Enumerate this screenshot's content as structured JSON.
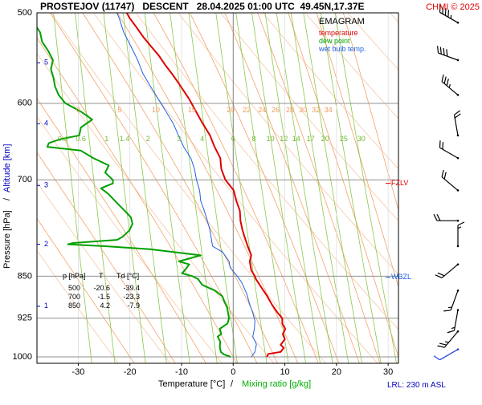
{
  "header": {
    "title": "PROSTEJOV (11747)   DESCENT   28.04.2025 01:00 UTC  49.45N,17.37E",
    "copyright": "CHMI © 2025"
  },
  "legend": {
    "title": "EMAGRAM",
    "items": [
      {
        "label": "temperature",
        "color": "#e00000"
      },
      {
        "label": "dew point",
        "color": "#00a000"
      },
      {
        "label": "wet bulb temp.",
        "color": "#2060e0"
      }
    ]
  },
  "axes": {
    "ylabel_pressure": "Pressure [hPa]",
    "ylabel_sep": "/",
    "ylabel_altitude": "Altitude [km]",
    "xlabel_temp": "Temperature [°C]",
    "xlabel_sep": "/",
    "xlabel_mixing": "Mixing ratio [g/kg]",
    "lrl": "LRL: 230 m ASL"
  },
  "markers": {
    "fzlv": {
      "label": "FZLV",
      "pressure": 705,
      "color": "#e00000"
    },
    "wbzl": {
      "label": "WBZL",
      "pressure": 852,
      "color": "#2060e0"
    }
  },
  "table": {
    "headers": [
      "p [hPa]",
      "T",
      "Td [°C]"
    ],
    "rows": [
      [
        "500",
        "-20.6",
        "-39.4"
      ],
      [
        "700",
        "-1.5",
        "-23.3"
      ],
      [
        "850",
        "4.2",
        "-7.9"
      ]
    ]
  },
  "chart_data": {
    "type": "line",
    "title": "EMAGRAM",
    "xlabel": "Temperature [°C]",
    "ylabel": "Pressure [hPa]",
    "xlim": [
      -38,
      32
    ],
    "ylim": [
      1013,
      500
    ],
    "yscale": "log",
    "x_ticks": [
      -30,
      -20,
      -10,
      0,
      10,
      20,
      30
    ],
    "pressure_ticks": [
      500,
      600,
      700,
      850,
      925,
      1000
    ],
    "altitude_ticks_km": [
      {
        "label": "1",
        "pressure": 903
      },
      {
        "label": "2",
        "pressure": 797
      },
      {
        "label": "3",
        "pressure": 708
      },
      {
        "label": "4",
        "pressure": 625
      },
      {
        "label": "5",
        "pressure": 553
      }
    ],
    "isotherm_labels": [
      {
        "label": "0",
        "t": -30,
        "p": 610
      },
      {
        "label": "5",
        "t": -22,
        "p": 610
      },
      {
        "label": "10",
        "t": -15,
        "p": 610
      },
      {
        "label": "15",
        "t": -8,
        "p": 610
      },
      {
        "label": "20",
        "t": -0.5,
        "p": 610
      },
      {
        "label": "22",
        "t": 2.6,
        "p": 610
      },
      {
        "label": "24",
        "t": 5.6,
        "p": 610
      },
      {
        "label": "26",
        "t": 8.2,
        "p": 610
      },
      {
        "label": "28",
        "t": 11.0,
        "p": 610
      },
      {
        "label": "30",
        "t": 13.5,
        "p": 610
      },
      {
        "label": "32",
        "t": 16.0,
        "p": 610
      },
      {
        "label": "34",
        "t": 18.4,
        "p": 610
      }
    ],
    "mixing_ratio_labels": [
      {
        "label": "0.4",
        "t": -33,
        "p": 625
      },
      {
        "label": "0.6",
        "t": -29.5,
        "p": 625
      },
      {
        "label": "1",
        "t": -24.5,
        "p": 625
      },
      {
        "label": "1.4",
        "t": -21,
        "p": 625
      },
      {
        "label": "2",
        "t": -16.5,
        "p": 625
      },
      {
        "label": "3",
        "t": -10.5,
        "p": 625
      },
      {
        "label": "4",
        "t": -6,
        "p": 625
      },
      {
        "label": "6",
        "t": 0,
        "p": 625
      },
      {
        "label": "8",
        "t": 4,
        "p": 625
      },
      {
        "label": "10",
        "t": 7.2,
        "p": 625
      },
      {
        "label": "12",
        "t": 9.8,
        "p": 625
      },
      {
        "label": "14",
        "t": 12.2,
        "p": 625
      },
      {
        "label": "17",
        "t": 15.0,
        "p": 625
      },
      {
        "label": "20",
        "t": 17.8,
        "p": 625
      },
      {
        "label": "25",
        "t": 21.4,
        "p": 625
      },
      {
        "label": "30",
        "t": 24.8,
        "p": 625
      }
    ],
    "series": [
      {
        "name": "temperature",
        "color": "#e00000",
        "points": [
          [
            1000,
            6.5
          ],
          [
            994,
            6.8
          ],
          [
            990,
            9.2
          ],
          [
            982,
            9.8
          ],
          [
            976,
            9.2
          ],
          [
            965,
            10
          ],
          [
            955,
            9.6
          ],
          [
            945,
            10.1
          ],
          [
            935,
            9.5
          ],
          [
            925,
            9.5
          ],
          [
            915,
            8.6
          ],
          [
            900,
            7.5
          ],
          [
            885,
            6.6
          ],
          [
            870,
            5.5
          ],
          [
            855,
            4.4
          ],
          [
            850,
            4.2
          ],
          [
            840,
            3.5
          ],
          [
            825,
            3.2
          ],
          [
            815,
            3.5
          ],
          [
            800,
            2.8
          ],
          [
            785,
            2.2
          ],
          [
            775,
            1.8
          ],
          [
            760,
            1.4
          ],
          [
            745,
            1.3
          ],
          [
            730,
            0.6
          ],
          [
            715,
            0.1
          ],
          [
            700,
            -1.5
          ],
          [
            685,
            -2.3
          ],
          [
            670,
            -2.5
          ],
          [
            655,
            -3.6
          ],
          [
            640,
            -4.5
          ],
          [
            625,
            -5.9
          ],
          [
            610,
            -7.2
          ],
          [
            595,
            -8.5
          ],
          [
            585,
            -9.6
          ],
          [
            575,
            -10.7
          ],
          [
            565,
            -11.9
          ],
          [
            555,
            -13.2
          ],
          [
            545,
            -14.4
          ],
          [
            535,
            -15.9
          ],
          [
            525,
            -17.4
          ],
          [
            515,
            -18.7
          ],
          [
            505,
            -20.1
          ],
          [
            500,
            -20.6
          ]
        ]
      },
      {
        "name": "dew point",
        "color": "#00a000",
        "points": [
          [
            1000,
            -0.5
          ],
          [
            995,
            -1.8
          ],
          [
            990,
            -2.4
          ],
          [
            980,
            -2.6
          ],
          [
            970,
            -2.5
          ],
          [
            960,
            -3
          ],
          [
            955,
            -2.3
          ],
          [
            945,
            -2.6
          ],
          [
            935,
            -1.1
          ],
          [
            925,
            -0.8
          ],
          [
            915,
            -1
          ],
          [
            905,
            -1.2
          ],
          [
            895,
            -1.7
          ],
          [
            885,
            -2.1
          ],
          [
            875,
            -3.5
          ],
          [
            865,
            -6
          ],
          [
            855,
            -6.8
          ],
          [
            850,
            -7.9
          ],
          [
            845,
            -9.9
          ],
          [
            840,
            -9.4
          ],
          [
            830,
            -8.5
          ],
          [
            825,
            -10.5
          ],
          [
            815,
            -6.3
          ],
          [
            805,
            -16.1
          ],
          [
            800,
            -25.1
          ],
          [
            797,
            -32
          ],
          [
            795,
            -31
          ],
          [
            790,
            -22.5
          ],
          [
            785,
            -21.4
          ],
          [
            775,
            -20.1
          ],
          [
            765,
            -19.5
          ],
          [
            755,
            -19.8
          ],
          [
            745,
            -21
          ],
          [
            735,
            -22.3
          ],
          [
            720,
            -24.2
          ],
          [
            712,
            -25.6
          ],
          [
            705,
            -23.3
          ],
          [
            700,
            -23.3
          ],
          [
            690,
            -24.8
          ],
          [
            680,
            -24.1
          ],
          [
            670,
            -27.1
          ],
          [
            660,
            -29.5
          ],
          [
            655,
            -36
          ],
          [
            650,
            -35.7
          ],
          [
            645,
            -33.5
          ],
          [
            640,
            -29.8
          ],
          [
            630,
            -29.5
          ],
          [
            620,
            -27.3
          ],
          [
            610,
            -29.5
          ],
          [
            600,
            -32.5
          ],
          [
            590,
            -33.8
          ],
          [
            580,
            -34.5
          ],
          [
            570,
            -34.8
          ],
          [
            560,
            -35.3
          ],
          [
            550,
            -34.9
          ],
          [
            540,
            -35.8
          ],
          [
            530,
            -37
          ],
          [
            520,
            -37.4
          ],
          [
            510,
            -38.6
          ],
          [
            505,
            -39.4
          ],
          [
            500,
            -39.4
          ]
        ]
      },
      {
        "name": "wet bulb temp.",
        "color": "#2060e0",
        "points": [
          [
            1000,
            3.5
          ],
          [
            990,
            4.2
          ],
          [
            975,
            4.5
          ],
          [
            960,
            3.8
          ],
          [
            945,
            4.1
          ],
          [
            930,
            4.2
          ],
          [
            915,
            3.8
          ],
          [
            900,
            3.2
          ],
          [
            880,
            2.6
          ],
          [
            860,
            1.6
          ],
          [
            850,
            0.8
          ],
          [
            835,
            -0.6
          ],
          [
            825,
            -0.8
          ],
          [
            810,
            -2
          ],
          [
            800,
            -4
          ],
          [
            790,
            -4.2
          ],
          [
            775,
            -4.5
          ],
          [
            760,
            -5
          ],
          [
            745,
            -5.6
          ],
          [
            730,
            -6.3
          ],
          [
            715,
            -6.5
          ],
          [
            700,
            -7.1
          ],
          [
            685,
            -7.5
          ],
          [
            670,
            -8.2
          ],
          [
            655,
            -9.6
          ],
          [
            640,
            -10.6
          ],
          [
            625,
            -11.6
          ],
          [
            610,
            -13
          ],
          [
            595,
            -14.5
          ],
          [
            580,
            -16
          ],
          [
            565,
            -17.5
          ],
          [
            550,
            -18.5
          ],
          [
            535,
            -19.8
          ],
          [
            520,
            -21.2
          ],
          [
            505,
            -22.1
          ],
          [
            500,
            -22.5
          ]
        ]
      }
    ],
    "wind_barbs": [
      {
        "pressure": 510,
        "direction_deg": 300,
        "speed_kt": 45
      },
      {
        "pressure": 550,
        "direction_deg": 290,
        "speed_kt": 40
      },
      {
        "pressure": 590,
        "direction_deg": 310,
        "speed_kt": 35
      },
      {
        "pressure": 640,
        "direction_deg": 350,
        "speed_kt": 20
      },
      {
        "pressure": 670,
        "direction_deg": 300,
        "speed_kt": 20
      },
      {
        "pressure": 715,
        "direction_deg": 310,
        "speed_kt": 20
      },
      {
        "pressure": 760,
        "direction_deg": 270,
        "speed_kt": 20
      },
      {
        "pressure": 800,
        "direction_deg": 360,
        "speed_kt": 15
      },
      {
        "pressure": 830,
        "direction_deg": 230,
        "speed_kt": 20
      },
      {
        "pressure": 875,
        "direction_deg": 200,
        "speed_kt": 15
      },
      {
        "pressure": 910,
        "direction_deg": 190,
        "speed_kt": 15
      },
      {
        "pressure": 950,
        "direction_deg": 220,
        "speed_kt": 25
      },
      {
        "pressure": 985,
        "direction_deg": 240,
        "speed_kt": 10
      }
    ]
  }
}
